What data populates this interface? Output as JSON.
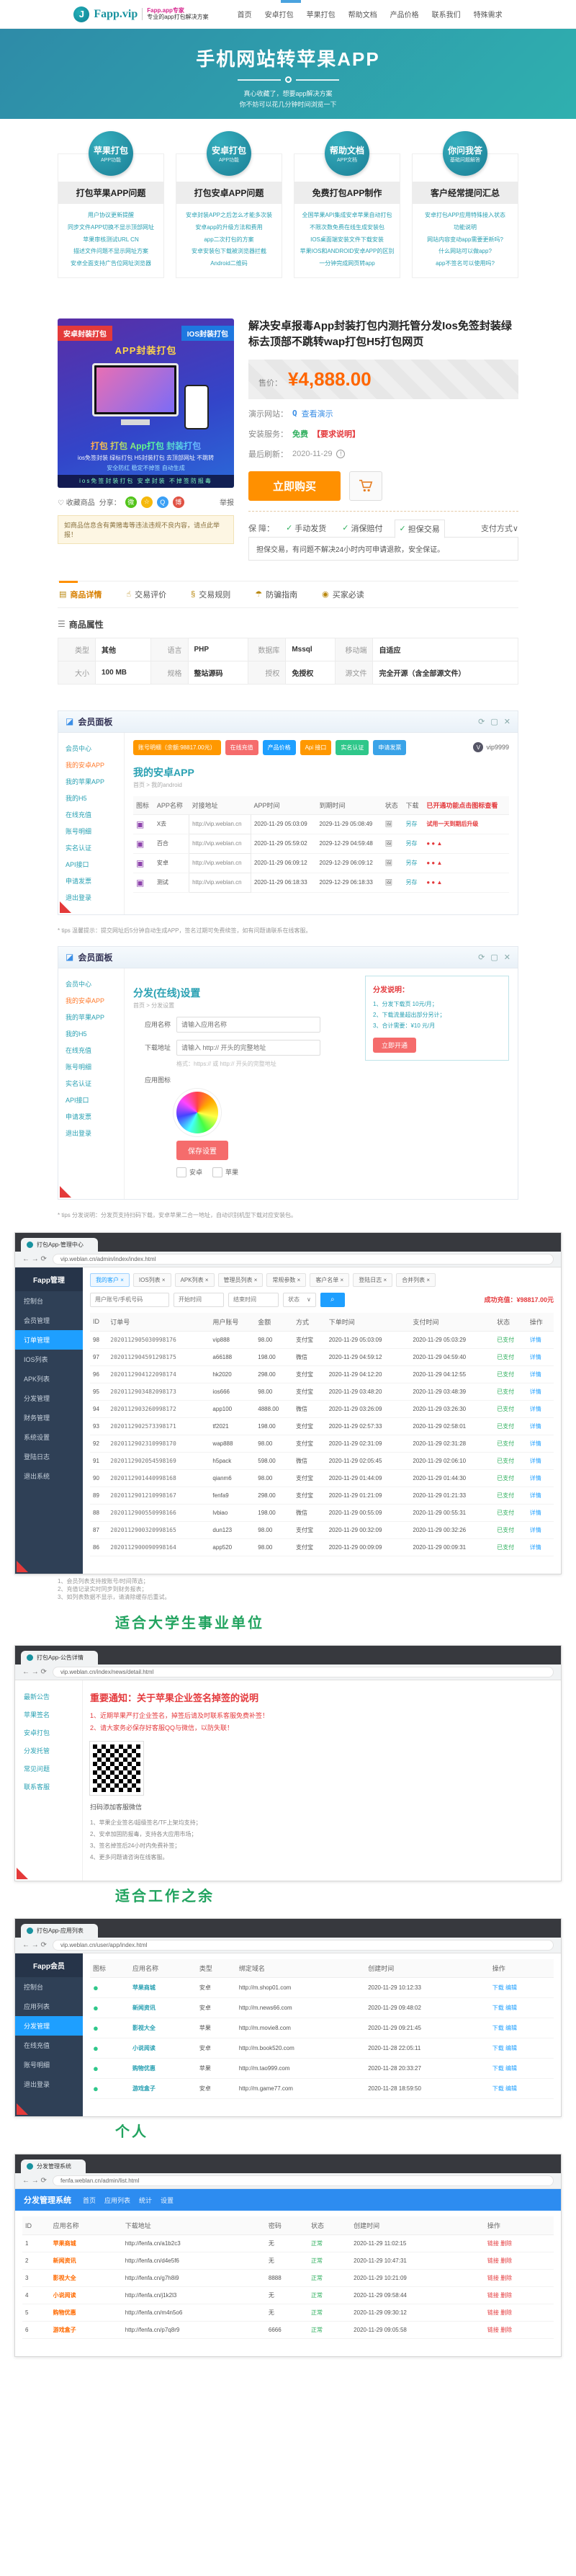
{
  "header": {
    "logo_text": "Fapp.vip",
    "logo_mark": "J",
    "logo_sub1": "Fapp.app专家",
    "logo_sub2": "专业的app打包解决方案",
    "nav": [
      "首页",
      "安卓打包",
      "苹果打包",
      "帮助文档",
      "产品价格",
      "联系我们",
      "特殊需求"
    ]
  },
  "hero": {
    "title": "手机网站转苹果APP",
    "sub1": "真心收藏了，想要app解决方案",
    "sub2": "你不妨可以花几分钟时间浏览一下"
  },
  "features": [
    {
      "badge": "苹果打包",
      "badge_sub": "APP功能",
      "title": "打包苹果APP问题",
      "links": [
        "用户协议更新提醒",
        "同步文件APP切换不显示顶部网址",
        "苹果审核测试URL CN",
        "描述文件问题不显示网址方案",
        "安卓全面支持广告位网址浏览器"
      ]
    },
    {
      "badge": "安卓打包",
      "badge_sub": "APP功能",
      "title": "打包安卓APP问题",
      "links": [
        "安卓封装APP之后怎么才能多次装",
        "安卓app的升级方法和费用",
        "app二次打包的方案",
        "安卓安装包下载被浏览器拦截",
        "Android二维码"
      ]
    },
    {
      "badge": "帮助文档",
      "badge_sub": "APP文档",
      "title": "免费打包APP制作",
      "links": [
        "全国苹果API集成安卓苹果自动打包",
        "不限次数免费在线生成安装包",
        "IOS桌面端安装文件下载安装",
        "苹果IOS和ANDROID安卓APP的区别",
        "一分钟完成网页转app"
      ]
    },
    {
      "badge": "你问我答",
      "badge_sub": "基础问题解答",
      "title": "客户经常提问汇总",
      "links": [
        "安卓打包APP应用特殊接入状态",
        "功能说明",
        "网站内容变动app需要更新吗?",
        "什么网站可以做app?",
        "app不签名可以使用吗?"
      ]
    }
  ],
  "product": {
    "promo": {
      "ribbon_left": "安卓封装打包",
      "ribbon_right": "IOS封装打包",
      "app_tag": "APP封装打包",
      "rainbow": "打包 打包 App打包 封装打包",
      "cap1": "ios免签封装 绿标打包 H5封装打包 去顶部网址 不跳转",
      "cap2": "安全防红 稳定不掉签 自动生成",
      "strip": "ios免签封装打包 安卓封装 不掉签防报毒"
    },
    "fav": "收藏商品",
    "share_label": "分享：",
    "share_icons": [
      "微",
      "☆",
      "Q",
      "博"
    ],
    "report": "举报",
    "notice": "如商品信息含有黄赌毒等违法违规不良内容，请点此举报！",
    "title": "解决安卓报毒App封装打包内测托管分发Ios免签封装绿标去顶部不跳转wap打包H5打包网页",
    "price_label": "售价：",
    "price": "¥4,888.00",
    "demo_label": "演示网站：",
    "demo_icon": "Q",
    "demo_link": "查看演示",
    "install_label": "安装服务：",
    "install_value": "免费",
    "install_note": "【要求说明】",
    "refresh_label": "最后刷新：",
    "refresh_value": "2020-11-29",
    "bang": "!",
    "buy": "立即购买",
    "guarantee_label": "保 障：",
    "guarantee_check": "✓",
    "guarantee_items": [
      "手动发货",
      "消保赔付",
      "担保交易"
    ],
    "pay_toggle": "支付方式∨",
    "guarantee_note": "担保交易，有问题不解决24小时内可申请退款，安全保证。"
  },
  "detail_tabs": [
    {
      "icon": "▤",
      "label": "商品详情"
    },
    {
      "icon": "☝",
      "label": "交易评价"
    },
    {
      "icon": "§",
      "label": "交易规则"
    },
    {
      "icon": "☂",
      "label": "防骗指南"
    },
    {
      "icon": "◉",
      "label": "买家必读"
    }
  ],
  "attributes": {
    "icon": "☰",
    "title": "商品属性",
    "table": {
      "cols": [],
      "rows": [
        [
          "类型",
          "其他",
          "语言",
          "PHP",
          "数据库",
          "Mssql",
          "移动端",
          "自适应"
        ],
        [
          "大小",
          "100 MB",
          "规格",
          "整站源码",
          "授权",
          "免授权",
          "源文件",
          "完全开源（含全部源文件）"
        ]
      ]
    }
  },
  "panel1": {
    "header": "会员面板",
    "tools": [
      "⟳",
      "▢",
      "✕"
    ],
    "sidebar": [
      "会员中心",
      "我的安卓APP",
      "我的苹果APP",
      "我的H5",
      "在线充值",
      "账号明细",
      "实名认证",
      "API接口",
      "申请发票",
      "退出登录"
    ],
    "buttons": [
      "账号明细（余额:98817.00元）",
      "在线充值",
      "产品价格",
      "Api 接口",
      "实名认证",
      "申请发票"
    ],
    "user": "vip9999",
    "heading": "我的安卓APP",
    "breadcrumb": "首页 > 我的android",
    "table": {
      "cols": [
        "图标",
        "APP名称",
        "对接地址",
        "APP时间",
        "到期时间",
        "状态",
        "下载",
        "已开通功能点击图标查看"
      ],
      "rows": [
        [
          "▣",
          "X去",
          "http://vip.weblan.cn",
          "2020-11-29 05:03:09",
          "2029-11-29 05:08:49",
          "🖼",
          "另存",
          "试用一天到期后升级"
        ],
        [
          "▣",
          "百合",
          "http://vip.weblan.cn",
          "2020-11-29 05:59:02",
          "2029-12-29 04:59:48",
          "🖼",
          "另存",
          "● ● ▲"
        ],
        [
          "▣",
          "安卓",
          "http://vip.weblan.cn",
          "2020-11-29 06:09:12",
          "2029-12-29 06:09:12",
          "🖼",
          "另存",
          "● ● ▲"
        ],
        [
          "▣",
          "测试",
          "http://vip.weblan.cn",
          "2020-11-29 06:18:33",
          "2029-12-29 06:18:33",
          "🖼",
          "另存",
          "● ● ▲"
        ]
      ]
    },
    "tip": "* tips 温馨提示：提交网址后5分钟自动生成APP，签名过期可免费续签，如有问题请联系在线客服。"
  },
  "panel2": {
    "header": "会员面板",
    "tools": [
      "⟳",
      "▢",
      "✕"
    ],
    "sidebar": [
      "会员中心",
      "我的安卓APP",
      "我的苹果APP",
      "我的H5",
      "在线充值",
      "账号明细",
      "实名认证",
      "API接口",
      "申请发票",
      "退出登录"
    ],
    "heading": "分发(在线)设置",
    "breadcrumb": "首页 > 分发设置",
    "name_label": "应用名称",
    "name_placeholder": "请输入应用名称",
    "url_label": "下载地址",
    "url_placeholder": "请输入 http:// 开头的完整地址",
    "hint": "格式：https:// 或 http:// 开头的完整地址",
    "icon_label": "应用图标",
    "save": "保存设置",
    "options": [
      "安卓",
      "苹果"
    ],
    "infobox_title": "分发说明：",
    "infobox_lines": [
      "1、分发下载页 10元/月；",
      "2、下载流量超出部分另计；",
      "3、合计需要：¥10 元/月"
    ],
    "infobox_btn": "立即开通",
    "tip": "* tips 分发说明：分发页支持扫码下载，安卓苹果二合一地址，自动识别机型下载对应安装包。"
  },
  "browserA": {
    "tab": "打包App-管理中心",
    "url": "vip.weblan.cn/admin/index/index.html",
    "logo": "Fapp管理",
    "sidebar": [
      "控制台",
      "会员管理",
      "订单管理",
      "IOS列表",
      "APK列表",
      "分发管理",
      "财务管理",
      "系统设置",
      "登陆日志",
      "退出系统"
    ],
    "chips": [
      "我的客户 ×",
      "IOS列表 ×",
      "APK列表 ×",
      "管理员列表 ×",
      "常规参数 ×",
      "客户名单 ×",
      "登陆日志 ×",
      "合并列表 ×"
    ],
    "search_user": "用户账号/手机号码",
    "search_start": "开始时间",
    "search_end": "结束时间",
    "select": "状态",
    "select_arrow": "∨",
    "search_btn": "⌕",
    "result": "成功充值：¥98817.00元",
    "table": {
      "cols": [
        "ID",
        "订单号",
        "用户账号",
        "金额",
        "方式",
        "下单时间",
        "支付时间",
        "状态",
        "操作"
      ],
      "rows": [
        [
          "98",
          "2020112905030998176",
          "vip888",
          "98.00",
          "支付宝",
          "2020-11-29 05:03:09",
          "2020-11-29 05:03:29",
          "已支付",
          "详情"
        ],
        [
          "97",
          "2020112904591298175",
          "a66188",
          "198.00",
          "微信",
          "2020-11-29 04:59:12",
          "2020-11-29 04:59:40",
          "已支付",
          "详情"
        ],
        [
          "96",
          "2020112904122098174",
          "hk2020",
          "298.00",
          "支付宝",
          "2020-11-29 04:12:20",
          "2020-11-29 04:12:55",
          "已支付",
          "详情"
        ],
        [
          "95",
          "2020112903482098173",
          "ios666",
          "98.00",
          "支付宝",
          "2020-11-29 03:48:20",
          "2020-11-29 03:48:39",
          "已支付",
          "详情"
        ],
        [
          "94",
          "2020112903260998172",
          "app100",
          "4888.00",
          "微信",
          "2020-11-29 03:26:09",
          "2020-11-29 03:26:30",
          "已支付",
          "详情"
        ],
        [
          "93",
          "2020112902573398171",
          "tf2021",
          "198.00",
          "支付宝",
          "2020-11-29 02:57:33",
          "2020-11-29 02:58:01",
          "已支付",
          "详情"
        ],
        [
          "92",
          "2020112902310998170",
          "wap888",
          "98.00",
          "支付宝",
          "2020-11-29 02:31:09",
          "2020-11-29 02:31:28",
          "已支付",
          "详情"
        ],
        [
          "91",
          "2020112902054598169",
          "h5pack",
          "598.00",
          "微信",
          "2020-11-29 02:05:45",
          "2020-11-29 02:06:10",
          "已支付",
          "详情"
        ],
        [
          "90",
          "2020112901440998168",
          "qianm6",
          "98.00",
          "支付宝",
          "2020-11-29 01:44:09",
          "2020-11-29 01:44:30",
          "已支付",
          "详情"
        ],
        [
          "89",
          "2020112901210998167",
          "fenfa9",
          "298.00",
          "支付宝",
          "2020-11-29 01:21:09",
          "2020-11-29 01:21:33",
          "已支付",
          "详情"
        ],
        [
          "88",
          "2020112900550998166",
          "lvbiao",
          "198.00",
          "微信",
          "2020-11-29 00:55:09",
          "2020-11-29 00:55:31",
          "已支付",
          "详情"
        ],
        [
          "87",
          "2020112900320998165",
          "dun123",
          "98.00",
          "支付宝",
          "2020-11-29 00:32:09",
          "2020-11-29 00:32:26",
          "已支付",
          "详情"
        ],
        [
          "86",
          "2020112900090998164",
          "app520",
          "98.00",
          "支付宝",
          "2020-11-29 00:09:09",
          "2020-11-29 00:09:31",
          "已支付",
          "详情"
        ]
      ]
    },
    "tips": [
      "1、会员列表支持按账号/时间筛选；",
      "2、充值记录实时同步到财务报表；",
      "3、如列表数据不显示，请清除缓存后重试。"
    ],
    "watermark": "适合大学生事业单位"
  },
  "browserB": {
    "tab": "打包App-公告详情",
    "url": "vip.weblan.cn/index/news/detail.html",
    "sidebar": [
      "最新公告",
      "苹果签名",
      "安卓打包",
      "分发托管",
      "常见问题",
      "联系客服"
    ],
    "title": "重要通知：关于苹果企业签名掉签的说明",
    "lines": [
      "1、近期苹果严打企业签名，掉签后请及时联系客服免费补签！",
      "2、请大家务必保存好客服QQ与微信，以防失联！"
    ],
    "qr_cap": "扫码添加客服微信",
    "list": [
      "1、苹果企业签名/超级签名/TF上架均支持；",
      "2、安卓加固防报毒，支持各大应用市场；",
      "3、签名掉签后24小时内免费补签；",
      "4、更多问题请咨询在线客服。"
    ],
    "watermark": "适合工作之余"
  },
  "browserC": {
    "tab": "打包App-应用列表",
    "url": "vip.weblan.cn/user/app/index.html",
    "logo": "Fapp会员",
    "sidebar": [
      "控制台",
      "应用列表",
      "分发管理",
      "在线充值",
      "账号明细",
      "退出登录"
    ],
    "table": {
      "cols": [
        "图标",
        "应用名称",
        "类型",
        "绑定域名",
        "创建时间",
        "操作"
      ],
      "rows": [
        [
          "●",
          "苹果商城",
          "安卓",
          "http://m.shop01.com",
          "2020-11-29 10:12:33",
          "下载 编辑"
        ],
        [
          "●",
          "新闻资讯",
          "安卓",
          "http://m.news66.com",
          "2020-11-29 09:48:02",
          "下载 编辑"
        ],
        [
          "●",
          "影视大全",
          "苹果",
          "http://m.movie8.com",
          "2020-11-29 09:21:45",
          "下载 编辑"
        ],
        [
          "●",
          "小说阅读",
          "安卓",
          "http://m.book520.com",
          "2020-11-28 22:05:11",
          "下载 编辑"
        ],
        [
          "●",
          "购物优惠",
          "苹果",
          "http://m.tao999.com",
          "2020-11-28 20:33:27",
          "下载 编辑"
        ],
        [
          "●",
          "游戏盒子",
          "安卓",
          "http://m.game77.com",
          "2020-11-28 18:59:50",
          "下载 编辑"
        ]
      ]
    },
    "watermark": "个人"
  },
  "browserD": {
    "tab": "分发管理系统",
    "url": "fenfa.weblan.cn/admin/list.html",
    "title": "分发管理系统",
    "menu": [
      "首页",
      "应用列表",
      "统计",
      "设置"
    ],
    "table": {
      "cols": [
        "ID",
        "应用名称",
        "下载地址",
        "密码",
        "状态",
        "创建时间",
        "操作"
      ],
      "rows": [
        [
          "1",
          "苹果商城",
          "http://fenfa.cn/a1b2c3",
          "无",
          "正常",
          "2020-11-29 11:02:15",
          "链接 删除"
        ],
        [
          "2",
          "新闻资讯",
          "http://fenfa.cn/d4e5f6",
          "无",
          "正常",
          "2020-11-29 10:47:31",
          "链接 删除"
        ],
        [
          "3",
          "影视大全",
          "http://fenfa.cn/g7h8i9",
          "8888",
          "正常",
          "2020-11-29 10:21:09",
          "链接 删除"
        ],
        [
          "4",
          "小说阅读",
          "http://fenfa.cn/j1k2l3",
          "无",
          "正常",
          "2020-11-29 09:58:44",
          "链接 删除"
        ],
        [
          "5",
          "购物优惠",
          "http://fenfa.cn/m4n5o6",
          "无",
          "正常",
          "2020-11-29 09:30:12",
          "链接 删除"
        ],
        [
          "6",
          "游戏盒子",
          "http://fenfa.cn/p7q8r9",
          "6666",
          "正常",
          "2020-11-29 09:05:58",
          "链接 删除"
        ]
      ]
    }
  }
}
